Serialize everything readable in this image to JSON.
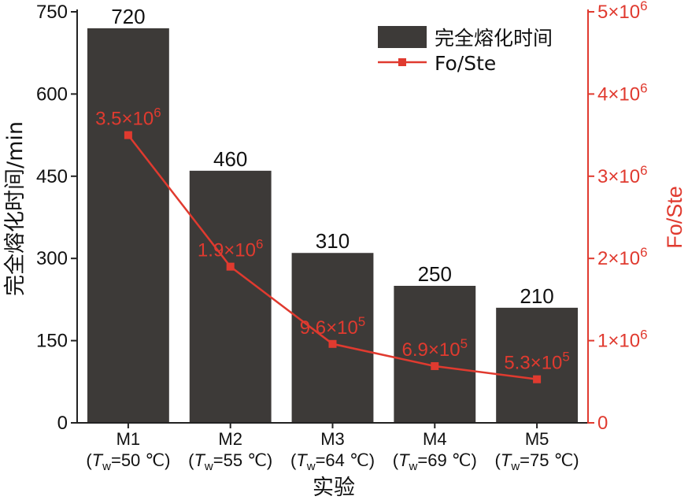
{
  "chart_data": {
    "type": "bar",
    "categories": [
      "M1",
      "M2",
      "M3",
      "M4",
      "M5"
    ],
    "category_sublabels": [
      {
        "prefix": "(",
        "var": "T",
        "sub": "w",
        "suffix": "=50 ℃)"
      },
      {
        "prefix": "(",
        "var": "T",
        "sub": "w",
        "suffix": "=55 ℃)"
      },
      {
        "prefix": "(",
        "var": "T",
        "sub": "w",
        "suffix": "=64 ℃)"
      },
      {
        "prefix": "(",
        "var": "T",
        "sub": "w",
        "suffix": "=69 ℃)"
      },
      {
        "prefix": "(",
        "var": "T",
        "sub": "w",
        "suffix": "=75 ℃)"
      }
    ],
    "series": [
      {
        "name": "完全熔化时间",
        "type": "bar",
        "axis": "left",
        "values": [
          720,
          460,
          310,
          250,
          210
        ],
        "data_labels": [
          "720",
          "460",
          "310",
          "250",
          "210"
        ],
        "color": "#3d3a38"
      },
      {
        "name": "Fo/Ste",
        "type": "line",
        "axis": "right",
        "values": [
          3500000,
          1900000,
          960000,
          690000,
          530000
        ],
        "data_labels": [
          {
            "mantissa": "3.5×10",
            "exp": "6"
          },
          {
            "mantissa": "1.9×10",
            "exp": "6"
          },
          {
            "mantissa": "9.6×10",
            "exp": "5"
          },
          {
            "mantissa": "6.9×10",
            "exp": "5"
          },
          {
            "mantissa": "5.3×10",
            "exp": "5"
          }
        ],
        "color": "#e03a2f"
      }
    ],
    "xlabel": "实验",
    "ylabel": "完全熔化时间/min",
    "ylabel_right": "Fo/Ste",
    "ylim": [
      0,
      750
    ],
    "yticks": [
      "0",
      "150",
      "300",
      "450",
      "600",
      "750"
    ],
    "ylim_right": [
      0,
      5000000
    ],
    "yticks_right": [
      {
        "mantissa": "0",
        "exp": ""
      },
      {
        "mantissa": "1×10",
        "exp": "6"
      },
      {
        "mantissa": "2×10",
        "exp": "6"
      },
      {
        "mantissa": "3×10",
        "exp": "6"
      },
      {
        "mantissa": "4×10",
        "exp": "6"
      },
      {
        "mantissa": "5×10",
        "exp": "6"
      }
    ],
    "legend_position": "top-right",
    "grid": false
  }
}
